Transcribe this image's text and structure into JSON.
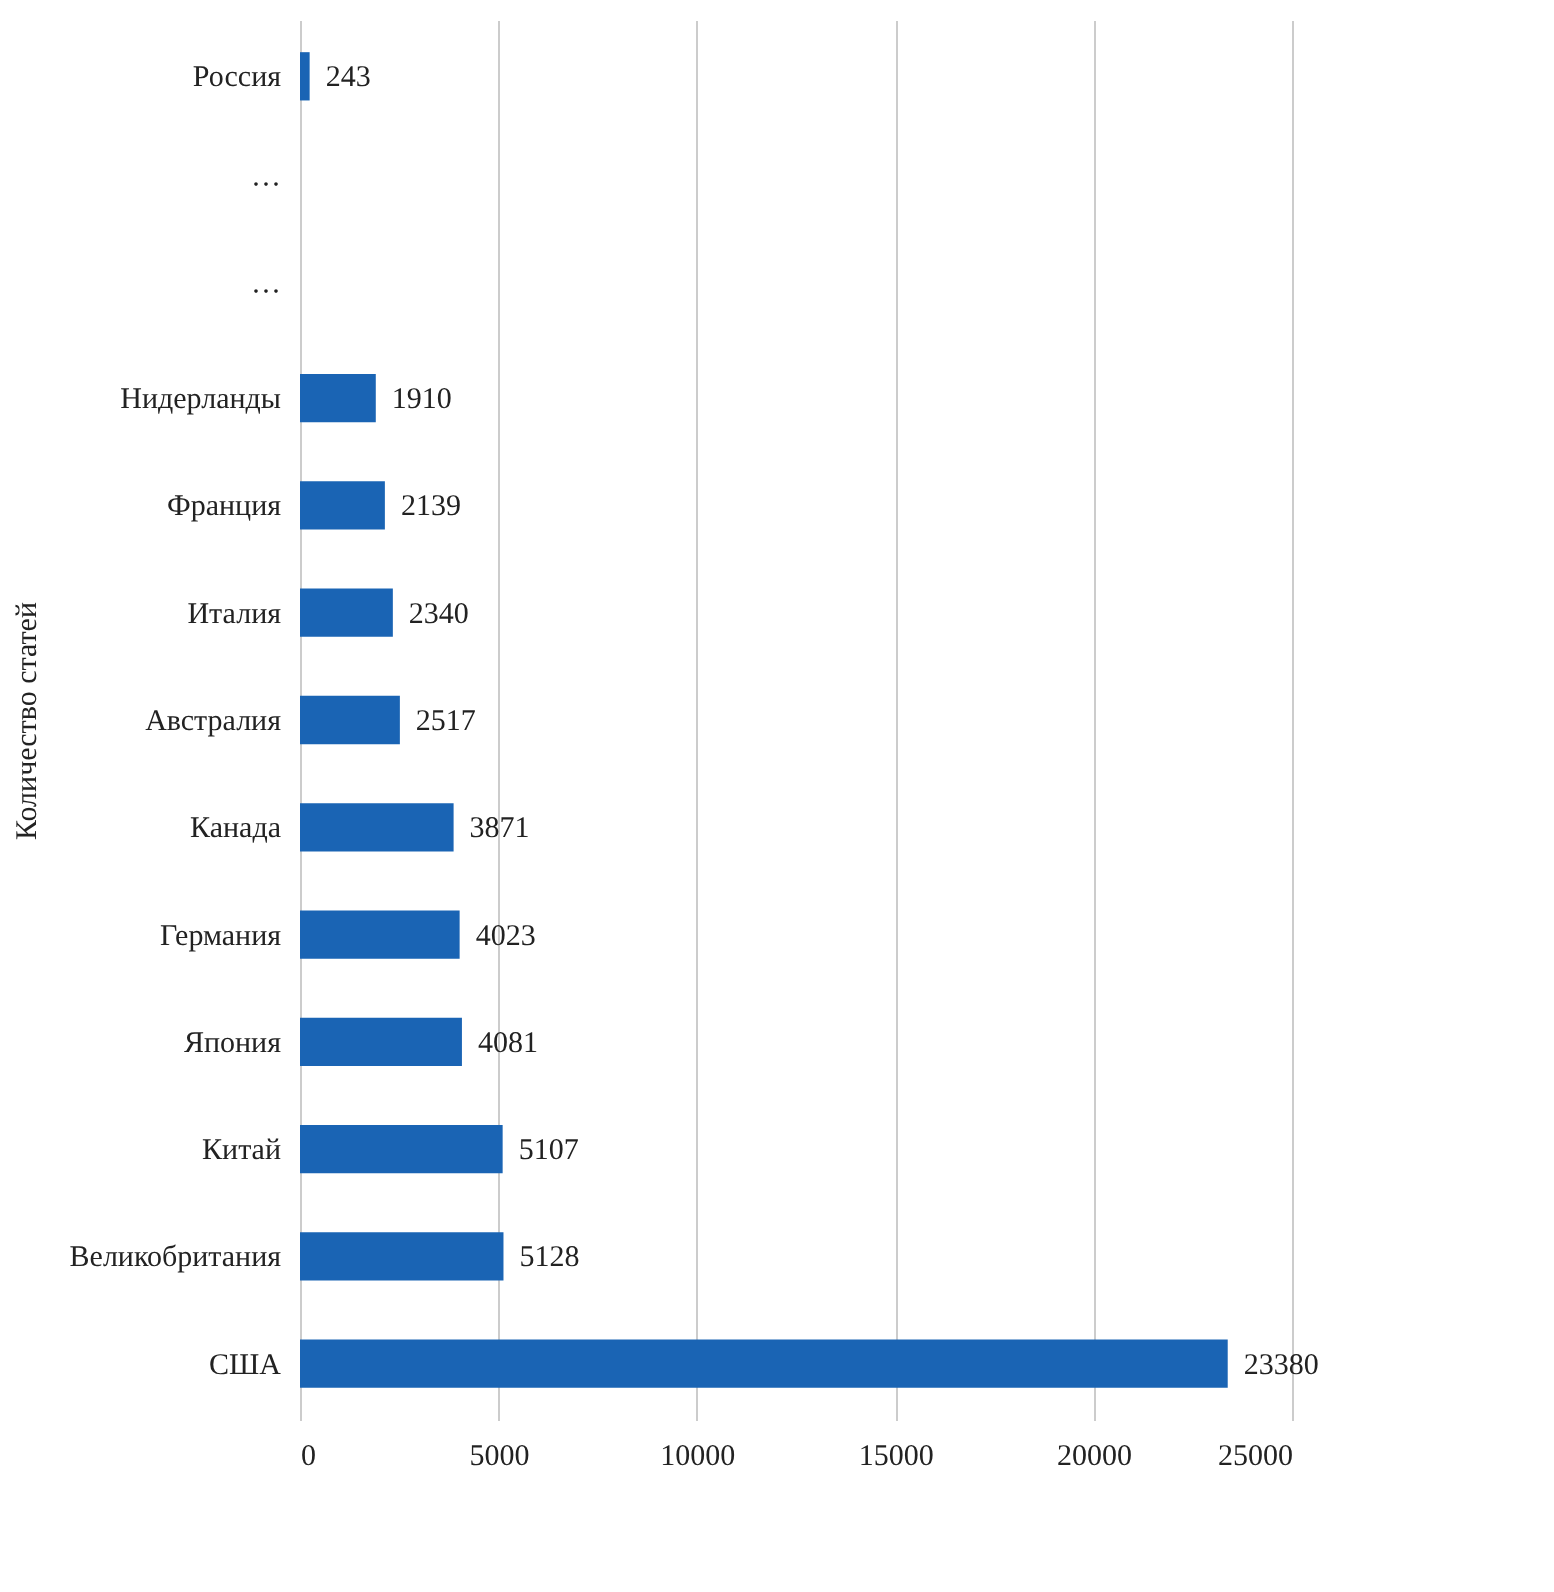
{
  "chart_data": {
    "type": "bar",
    "orientation": "horizontal",
    "ylabel": "Количество статей",
    "categories": [
      "Россия",
      "···",
      "···",
      "Нидерланды",
      "Франция",
      "Италия",
      "Австралия",
      "Канада",
      "Германия",
      "Япония",
      "Китай",
      "Великобритания",
      "США"
    ],
    "values": [
      243,
      null,
      null,
      1910,
      2139,
      2340,
      2517,
      3871,
      4023,
      4081,
      5107,
      5128,
      23380
    ],
    "color": "#1a64b4",
    "xlim": [
      0,
      25000
    ],
    "xticks": [
      0,
      5000,
      10000,
      15000,
      20000,
      25000
    ],
    "grid": "x",
    "data_labels": true
  }
}
